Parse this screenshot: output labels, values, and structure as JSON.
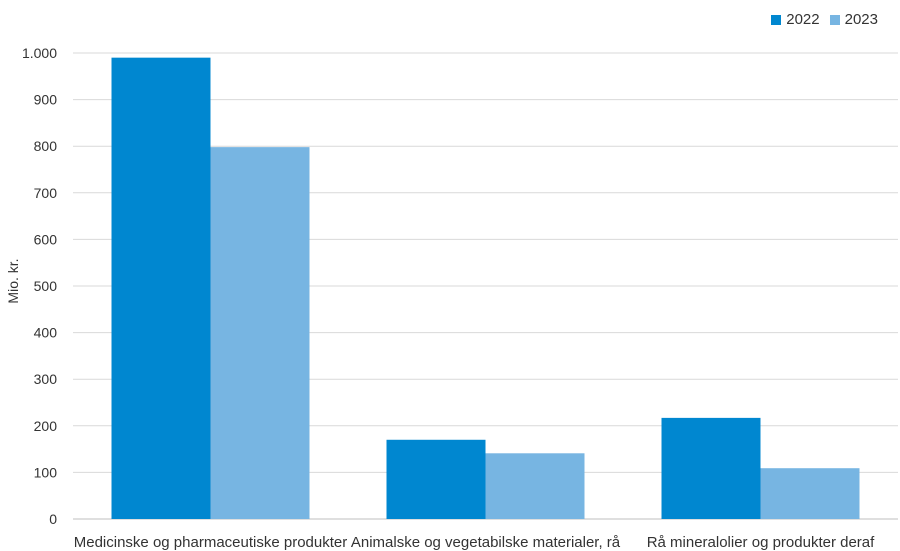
{
  "chart_data": {
    "type": "bar",
    "title": "",
    "xlabel": "",
    "ylabel": "Mio. kr.",
    "categories": [
      "Medicinske og pharmaceutiske produkter",
      "Animalske og vegetabilske materialer, rå",
      "Rå mineralolier og produkter deraf"
    ],
    "series": [
      {
        "name": "2022",
        "color": "#0087d0",
        "values": [
          990,
          170,
          217
        ]
      },
      {
        "name": "2023",
        "color": "#77b5e2",
        "values": [
          798,
          141,
          109
        ]
      }
    ],
    "ylim": [
      0,
      1000
    ],
    "yticks": [
      0,
      100,
      200,
      300,
      400,
      500,
      600,
      700,
      800,
      900,
      1000
    ],
    "ytick_labels": [
      "0",
      "100",
      "200",
      "300",
      "400",
      "500",
      "600",
      "700",
      "800",
      "900",
      "1.000"
    ],
    "grid": true,
    "legend_position": "top-right"
  }
}
